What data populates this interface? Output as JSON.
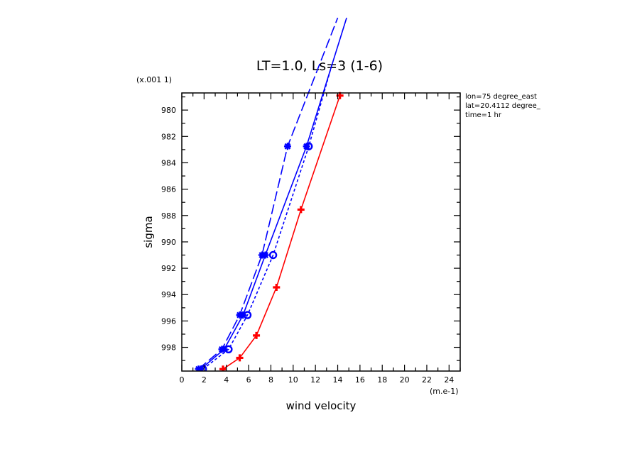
{
  "chart_data": {
    "type": "line",
    "title": "LT=1.0, Ls=3 (1-6)",
    "xlabel": "wind velocity",
    "ylabel": "sigma",
    "x_unit": "(m.e-1)",
    "y_unit": "(x.001 1)",
    "xlim": [
      0,
      25
    ],
    "ylim": [
      999.8,
      978.7
    ],
    "x_ticks": [
      "0",
      "2",
      "4",
      "6",
      "8",
      "10",
      "12",
      "14",
      "16",
      "18",
      "20",
      "22",
      "24"
    ],
    "y_ticks": [
      "980",
      "982",
      "984",
      "986",
      "988",
      "990",
      "992",
      "994",
      "996",
      "998"
    ],
    "info": [
      "lon=75 degree_east",
      "lat=20.4112 degree_",
      "time=1 hr"
    ],
    "colors": {
      "blue": "#0000ff",
      "red": "#ff0000"
    },
    "series": [
      {
        "color": "#0000ff",
        "style": "long-dash",
        "marker": "asterisk",
        "x": [
          1.5,
          3.6,
          5.2,
          7.2,
          9.5,
          14.0
        ],
        "y": [
          999.65,
          998.15,
          995.55,
          991.0,
          982.75,
          973.0
        ]
      },
      {
        "color": "#0000ff",
        "style": "solid",
        "marker": "asterisk",
        "x": [
          1.7,
          3.8,
          5.5,
          7.5,
          11.2,
          14.8
        ],
        "y": [
          999.65,
          998.15,
          995.55,
          991.0,
          982.75,
          973.0
        ]
      },
      {
        "color": "#0000ff",
        "style": "dashed",
        "marker": "circle",
        "x": [
          1.9,
          4.2,
          5.9,
          8.2,
          11.4,
          13.5
        ],
        "y": [
          999.65,
          998.15,
          995.55,
          991.0,
          982.75,
          976.5
        ]
      },
      {
        "color": "#ff0000",
        "style": "solid",
        "marker": "plus",
        "x": [
          3.7,
          5.2,
          6.7,
          8.5,
          10.7,
          14.2
        ],
        "y": [
          999.65,
          998.8,
          997.1,
          993.45,
          987.55,
          978.9
        ]
      }
    ]
  }
}
